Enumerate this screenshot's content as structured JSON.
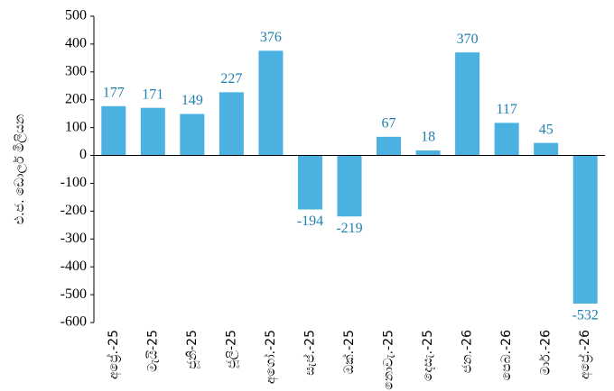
{
  "chart_data": {
    "type": "bar",
    "y_label": "එ.ජ. ඩොලර් මිලියන",
    "categories": [
      "අප්‍රේ.-25",
      "මැයි-25",
      "ජූනි-25",
      "ජූලි-25",
      "අගෝ.-25",
      "සැප්.-25",
      "ඔක්.-25",
      "නොවැ.-25",
      "දෙසැ.-25",
      "ජන.-26",
      "පෙබ.-26",
      "මාර්.-26",
      "අප්‍රේ.-26"
    ],
    "values": [
      177,
      171,
      149,
      227,
      376,
      -194,
      -219,
      67,
      18,
      370,
      117,
      45,
      -532
    ],
    "color": "#4ab1e1",
    "ylim": [
      -600,
      500
    ],
    "yticks": [
      -600,
      -500,
      -400,
      -300,
      -200,
      -100,
      0,
      100,
      200,
      300,
      400,
      500
    ],
    "grid": false
  }
}
